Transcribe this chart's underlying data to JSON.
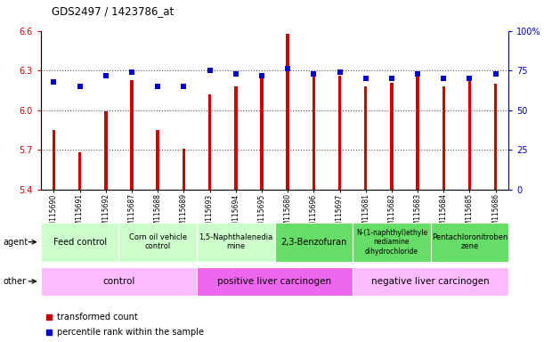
{
  "title": "GDS2497 / 1423786_at",
  "samples": [
    "GSM115690",
    "GSM115691",
    "GSM115692",
    "GSM115687",
    "GSM115688",
    "GSM115689",
    "GSM115693",
    "GSM115694",
    "GSM115695",
    "GSM115680",
    "GSM115696",
    "GSM115697",
    "GSM115681",
    "GSM115682",
    "GSM115683",
    "GSM115684",
    "GSM115685",
    "GSM115686"
  ],
  "transformed_count": [
    5.85,
    5.68,
    5.99,
    6.23,
    5.85,
    5.71,
    6.12,
    6.18,
    6.27,
    6.58,
    6.27,
    6.26,
    6.18,
    6.21,
    6.27,
    6.18,
    6.22,
    6.2
  ],
  "percentile_rank": [
    68,
    65,
    72,
    74,
    65,
    65,
    75,
    73,
    72,
    76,
    73,
    74,
    70,
    70,
    73,
    70,
    70,
    73
  ],
  "ylim_left": [
    5.4,
    6.6
  ],
  "ylim_right": [
    0,
    100
  ],
  "yticks_left": [
    5.4,
    5.7,
    6.0,
    6.3,
    6.6
  ],
  "yticks_right": [
    0,
    25,
    50,
    75,
    100
  ],
  "bar_color": "#cc0000",
  "dot_color": "#0000cc",
  "agent_groups": [
    {
      "label": "Feed control",
      "start": 0,
      "end": 3,
      "color": "#ccffcc",
      "fontsize": 7
    },
    {
      "label": "Corn oil vehicle\ncontrol",
      "start": 3,
      "end": 6,
      "color": "#ccffcc",
      "fontsize": 6
    },
    {
      "label": "1,5-Naphthalenedia\nmine",
      "start": 6,
      "end": 9,
      "color": "#ccffcc",
      "fontsize": 6
    },
    {
      "label": "2,3-Benzofuran",
      "start": 9,
      "end": 12,
      "color": "#66dd66",
      "fontsize": 7
    },
    {
      "label": "N-(1-naphthyl)ethyle\nnediamine\ndihydrochloride",
      "start": 12,
      "end": 15,
      "color": "#66dd66",
      "fontsize": 5.5
    },
    {
      "label": "Pentachloronitroben\nzene",
      "start": 15,
      "end": 18,
      "color": "#66dd66",
      "fontsize": 6
    }
  ],
  "other_groups": [
    {
      "label": "control",
      "start": 0,
      "end": 6,
      "color": "#ffbbff"
    },
    {
      "label": "positive liver carcinogen",
      "start": 6,
      "end": 12,
      "color": "#ee66ee"
    },
    {
      "label": "negative liver carcinogen",
      "start": 12,
      "end": 18,
      "color": "#ffbbff"
    }
  ],
  "gridline_color": "#555555",
  "tick_label_color_left": "#cc0000",
  "tick_label_color_right": "#0000cc",
  "bar_width": 0.12,
  "dot_size": 4
}
